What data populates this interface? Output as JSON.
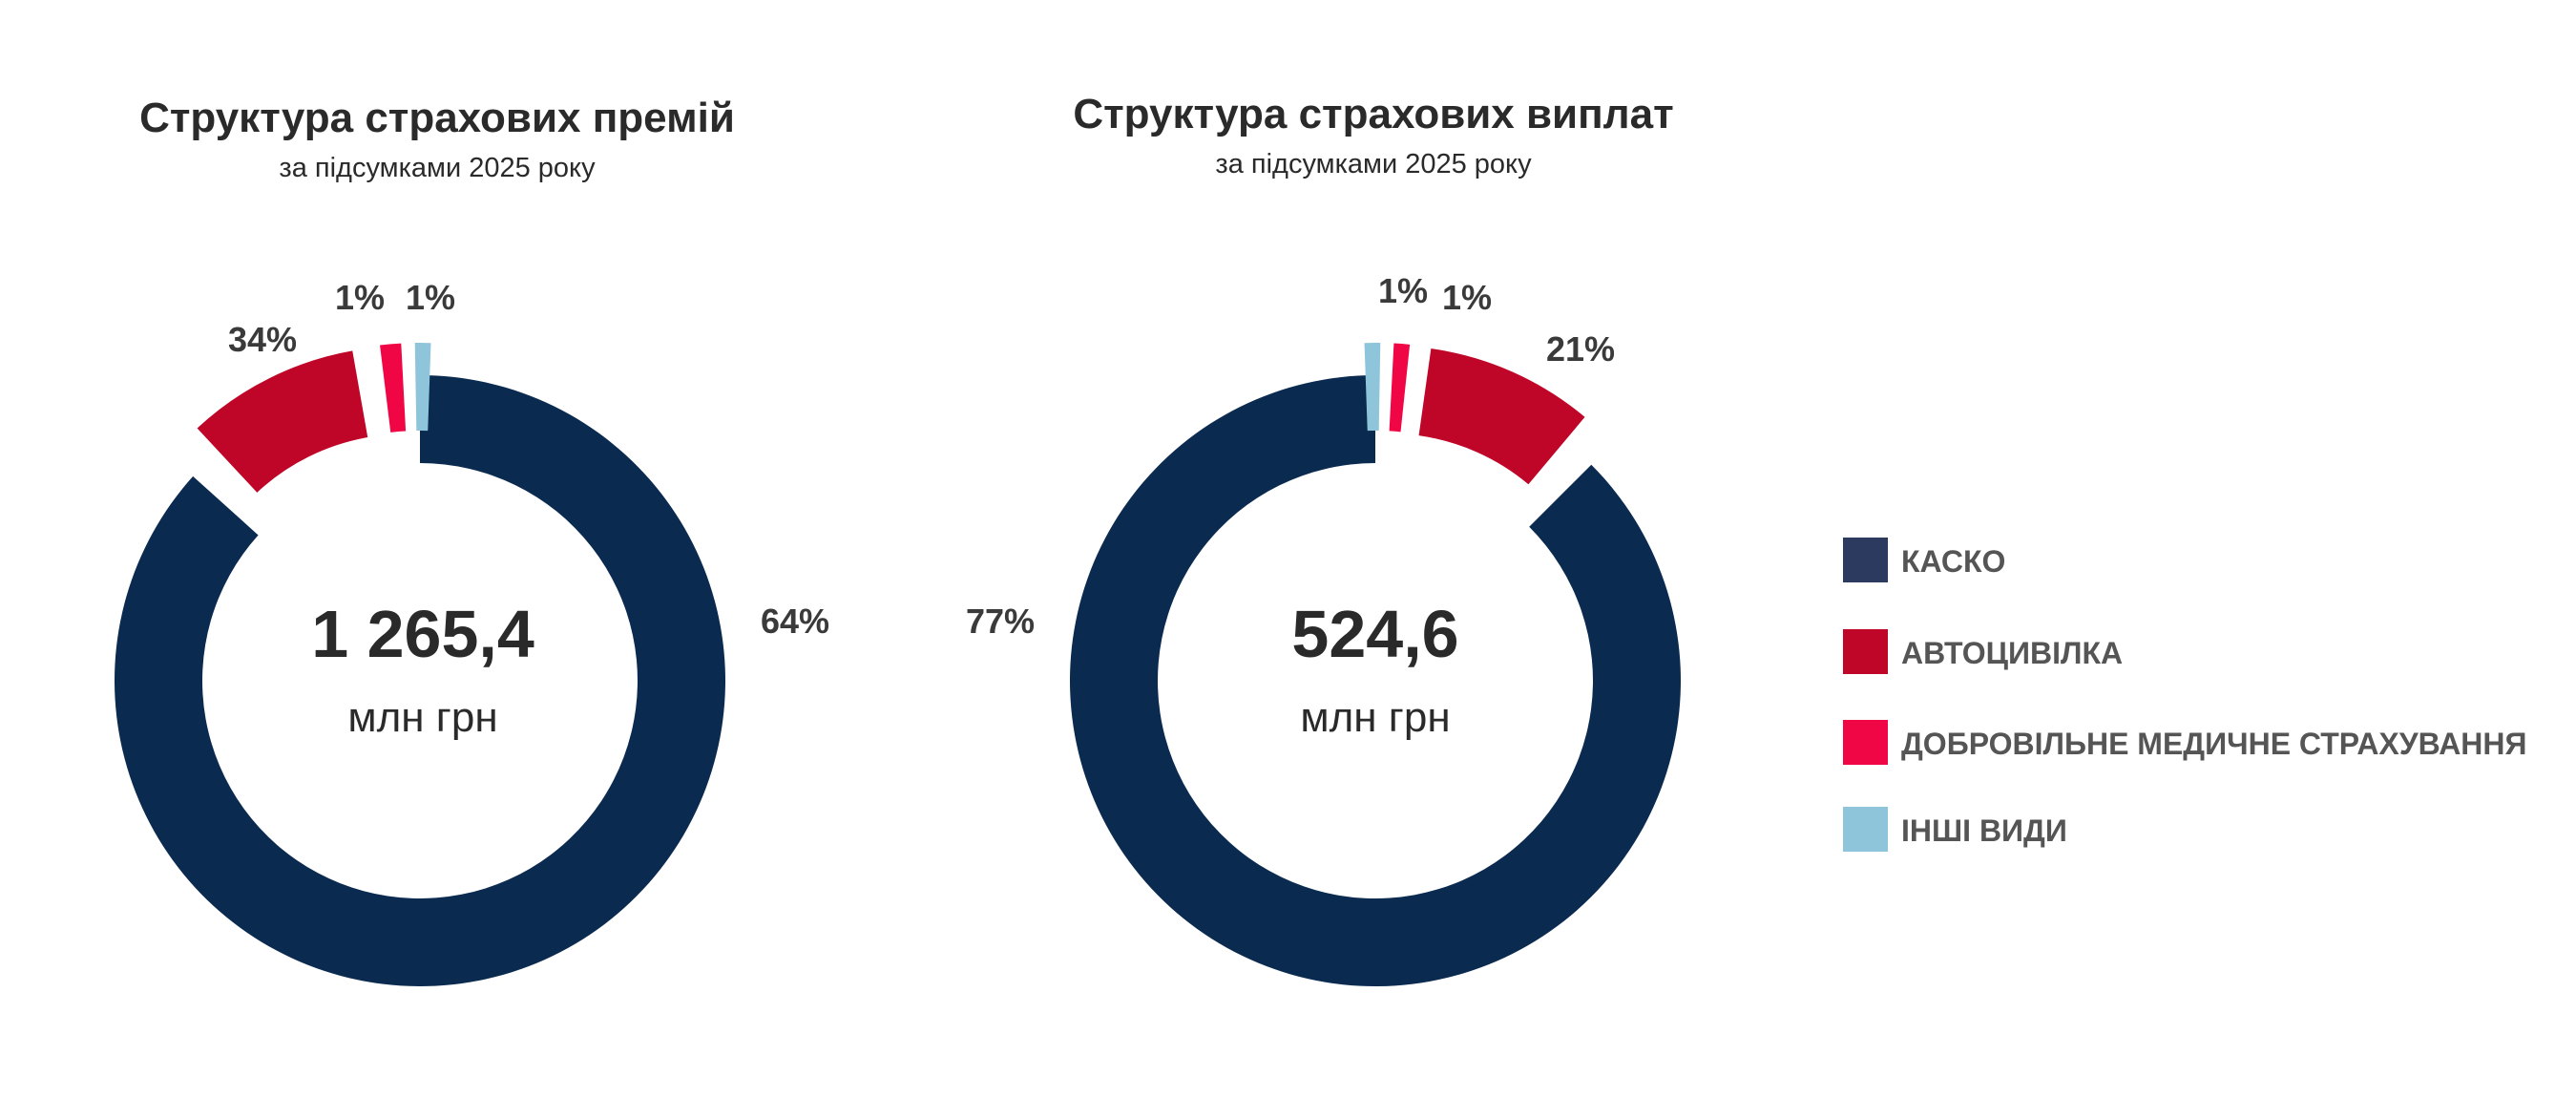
{
  "chart_data": [
    {
      "type": "pie",
      "title": "Структура страхових премій",
      "subtitle": "за підсумками 2025 року",
      "total": "1 265,4",
      "unit": "млн грн",
      "categories": [
        "КАСКО",
        "АВТОЦИВІЛКА",
        "ДОБРОВІЛЬНЕ МЕДИЧНЕ СТРАХУВАННЯ",
        "ІНШІ ВИДИ"
      ],
      "values": [
        64,
        34,
        1,
        1
      ],
      "labels": [
        "64%",
        "34%",
        "1%",
        "1%"
      ]
    },
    {
      "type": "pie",
      "title": "Структура страхових виплат",
      "subtitle": "за підсумками 2025 року",
      "total": "524,6",
      "unit": "млн грн",
      "categories": [
        "КАСКО",
        "АВТОЦИВІЛКА",
        "ДОБРОВІЛЬНЕ МЕДИЧНЕ СТРАХУВАННЯ",
        "ІНШІ ВИДИ"
      ],
      "values": [
        77,
        21,
        1,
        1
      ],
      "labels": [
        "77%",
        "21%",
        "1%",
        "1%"
      ]
    }
  ],
  "legend": {
    "placement": "right",
    "items": [
      {
        "label": "КАСКО",
        "color": "#2b3a5e"
      },
      {
        "label": "АВТОЦИВІЛКА",
        "color": "#c00628"
      },
      {
        "label": "ДОБРОВІЛЬНЕ МЕДИЧНЕ СТРАХУВАННЯ",
        "color": "#f00644"
      },
      {
        "label": "ІНШІ ВИДИ",
        "color": "#8fc5da"
      }
    ]
  },
  "colors": [
    "#0a2a50",
    "#c00628",
    "#f00644",
    "#8fc5da"
  ]
}
